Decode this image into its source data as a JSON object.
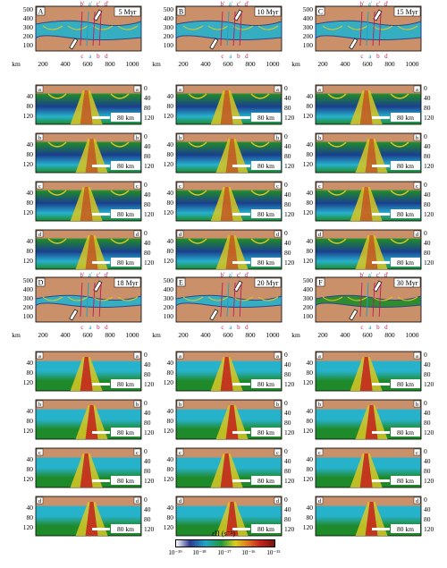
{
  "figure": {
    "panel_groups": [
      {
        "label": "A",
        "time": "5 Myr"
      },
      {
        "label": "B",
        "time": "10 Myr"
      },
      {
        "label": "C",
        "time": "15 Myr"
      },
      {
        "label": "D",
        "time": "18 Myr"
      },
      {
        "label": "E",
        "time": "20 Myr"
      },
      {
        "label": "F",
        "time": "30 Myr"
      }
    ],
    "map_y_ticks": [
      "500",
      "400",
      "300",
      "200",
      "100"
    ],
    "map_x_ticks": [
      "200",
      "400",
      "600",
      "800",
      "1000"
    ],
    "map_x_unit": "km",
    "top_profile_labels": [
      "b'",
      "a'",
      "c'",
      "d'"
    ],
    "bottom_profile_labels": [
      "c",
      "a",
      "b",
      "d"
    ],
    "section_labels": [
      "a",
      "b",
      "c",
      "d"
    ],
    "section_depth_ticks": [
      "40",
      "80",
      "120"
    ],
    "section_depth_ticks_right": [
      "0",
      "40",
      "80",
      "120"
    ],
    "scale_label": "80 km",
    "colors": {
      "continent": "#c9906a",
      "mantle_green": "#1f8a2a",
      "low_strain": "#1a3f8f",
      "mid_strain": "#27b2cc",
      "high_strain": "#d9c723",
      "peak_strain": "#c3201c",
      "arrow_fill": "#ffffff"
    }
  },
  "colorbar": {
    "label": "ε̇II (s⁻¹)",
    "ticks": [
      "10⁻¹⁹",
      "10⁻¹⁸",
      "10⁻¹⁷",
      "10⁻¹⁶",
      "10⁻¹⁵"
    ]
  }
}
